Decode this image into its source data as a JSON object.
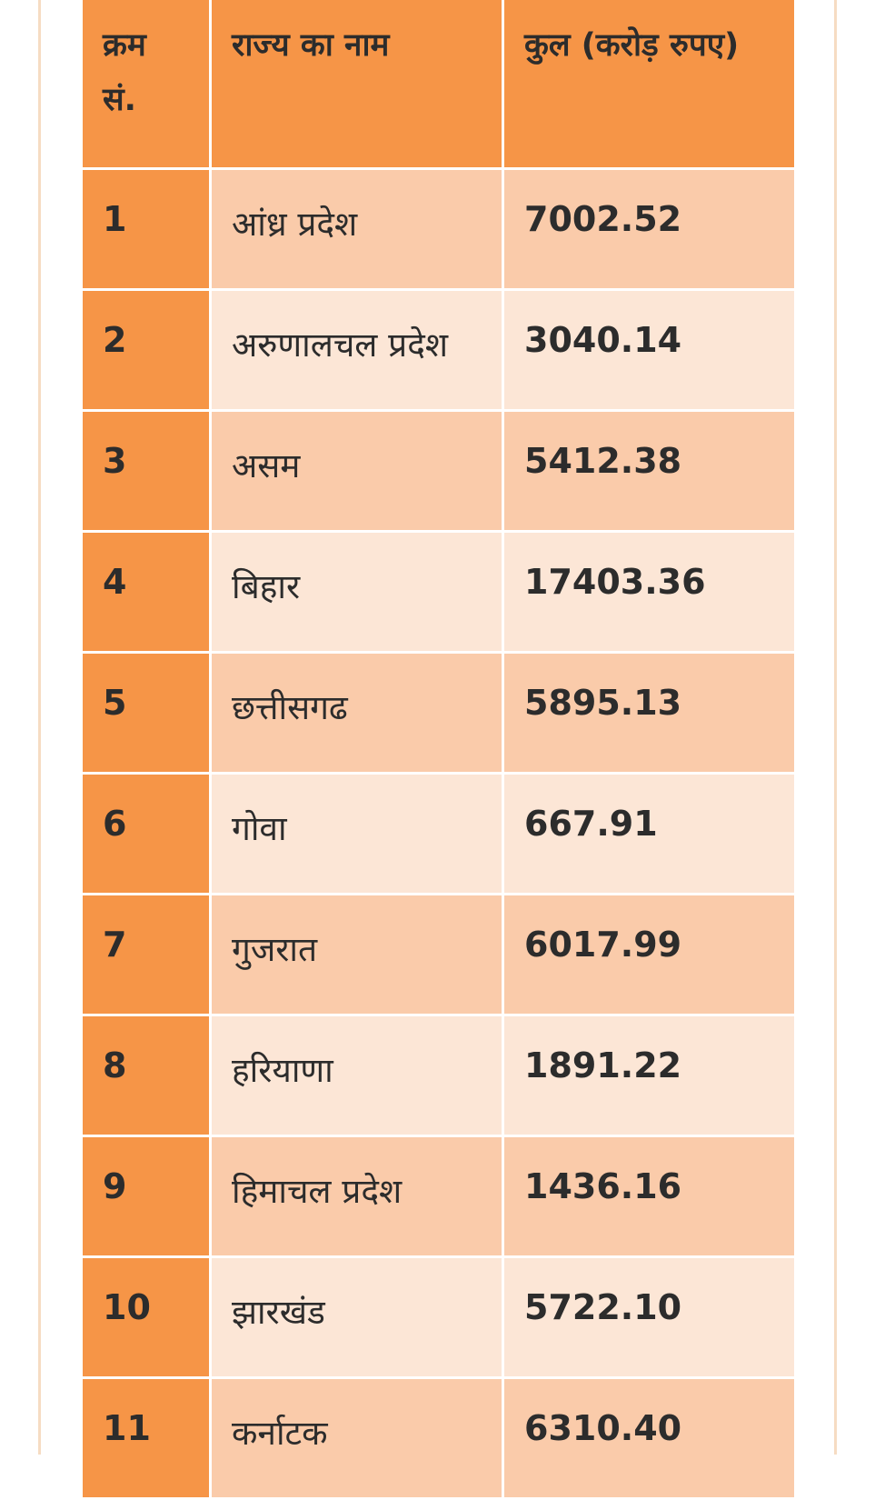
{
  "table": {
    "headers": [
      "क्रम सं.",
      "राज्य का नाम",
      "कुल (करोड़ रुपए)"
    ],
    "rows": [
      {
        "no": "1",
        "state": "आंध्र प्रदेश",
        "amount": "7002.52"
      },
      {
        "no": "2",
        "state": "अरुणालचल प्रदेश",
        "amount": "3040.14"
      },
      {
        "no": "3",
        "state": "असम",
        "amount": "5412.38"
      },
      {
        "no": "4",
        "state": "बिहार",
        "amount": "17403.36"
      },
      {
        "no": "5",
        "state": "छत्तीसगढ",
        "amount": "5895.13"
      },
      {
        "no": "6",
        "state": "गोवा",
        "amount": "667.91"
      },
      {
        "no": "7",
        "state": "गुजरात",
        "amount": "6017.99"
      },
      {
        "no": "8",
        "state": "हरियाणा",
        "amount": "1891.22"
      },
      {
        "no": "9",
        "state": "हिमाचल प्रदेश",
        "amount": "1436.16"
      },
      {
        "no": "10",
        "state": "झारखंड",
        "amount": "5722.10"
      },
      {
        "no": "11",
        "state": "कर्नाटक",
        "amount": "6310.40"
      }
    ]
  },
  "colors": {
    "header_bg": "#f69547",
    "row_dark": "#facbaa",
    "row_light": "#fce6d6"
  }
}
